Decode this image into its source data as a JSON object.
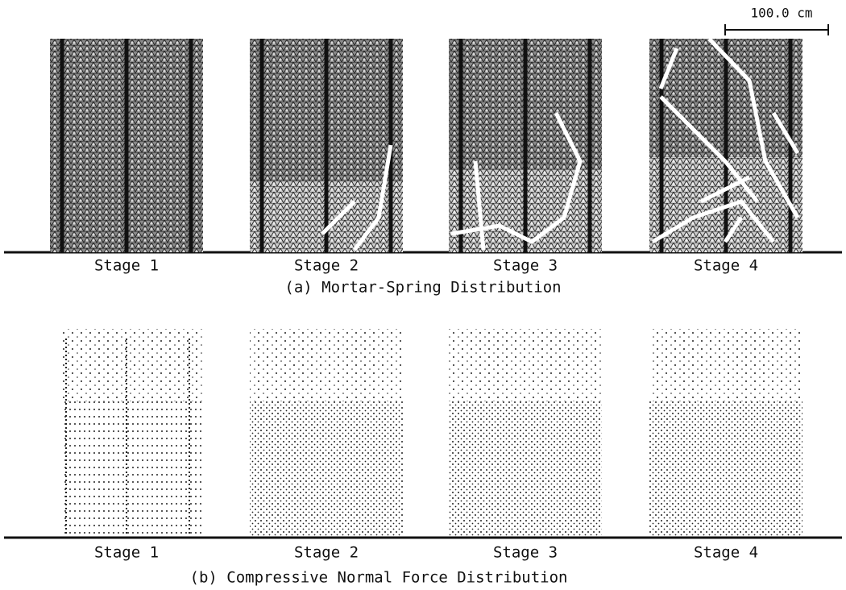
{
  "scale_bar": {
    "label": "100.0 cm"
  },
  "panel_a": {
    "stages": [
      "Stage 1",
      "Stage 2",
      "Stage 3",
      "Stage 4"
    ],
    "caption": "(a) Mortar-Spring Distribution"
  },
  "panel_b": {
    "stages": [
      "Stage 1",
      "Stage 2",
      "Stage 3",
      "Stage 4"
    ],
    "caption": "(b) Compressive Normal Force Distribution"
  }
}
